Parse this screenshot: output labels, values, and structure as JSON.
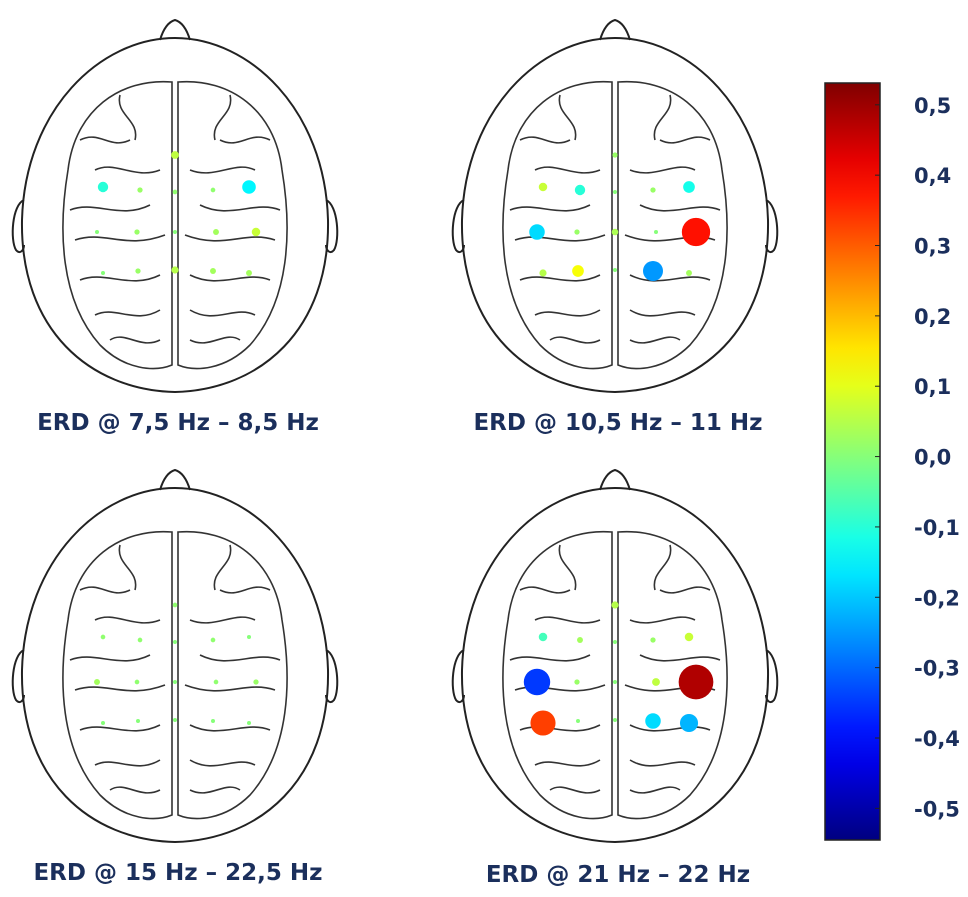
{
  "panels": [
    {
      "title": "ERD @ 7,5 Hz – 8,5 Hz",
      "values": [
        0.06,
        -0.1,
        0.02,
        0.01,
        0.01,
        -0.15,
        0.0,
        0.02,
        0.0,
        0.03,
        0.07,
        0.0,
        0.02,
        0.05,
        0.03,
        0.03
      ]
    },
    {
      "title": "ERD @ 10,5 Hz – 11 Hz",
      "values": [
        0.02,
        0.07,
        -0.1,
        0.0,
        0.02,
        -0.12,
        -0.18,
        0.02,
        0.04,
        0.0,
        0.38,
        0.05,
        0.12,
        0.0,
        -0.25,
        0.03
      ]
    },
    {
      "title": "ERD @ 15 Hz – 22,5 Hz",
      "values": [
        0.01,
        0.01,
        0.01,
        0.0,
        0.01,
        0.0,
        0.03,
        0.01,
        0.0,
        0.01,
        0.02,
        0.0,
        0.0,
        0.0,
        0.0,
        0.0
      ]
    },
    {
      "title": "ERD @ 21 Hz – 22 Hz",
      "values": [
        0.05,
        -0.07,
        0.03,
        0.0,
        0.02,
        0.07,
        -0.35,
        0.02,
        0.0,
        0.06,
        0.48,
        0.33,
        0.0,
        0.0,
        -0.18,
        -0.22
      ]
    }
  ],
  "colorbar": {
    "clim": [
      -0.545,
      0.531
    ],
    "ticks": [
      {
        "value": 0.5,
        "label": "0,5"
      },
      {
        "value": 0.4,
        "label": "0,4"
      },
      {
        "value": 0.3,
        "label": "0,3"
      },
      {
        "value": 0.2,
        "label": "0,2"
      },
      {
        "value": 0.1,
        "label": "0,1"
      },
      {
        "value": 0.0,
        "label": "0,0"
      },
      {
        "value": -0.1,
        "label": "-0,1"
      },
      {
        "value": -0.2,
        "label": "-0,2"
      },
      {
        "value": -0.3,
        "label": "-0,3"
      },
      {
        "value": -0.4,
        "label": "-0,4"
      },
      {
        "value": -0.5,
        "label": "-0,5"
      }
    ]
  }
}
